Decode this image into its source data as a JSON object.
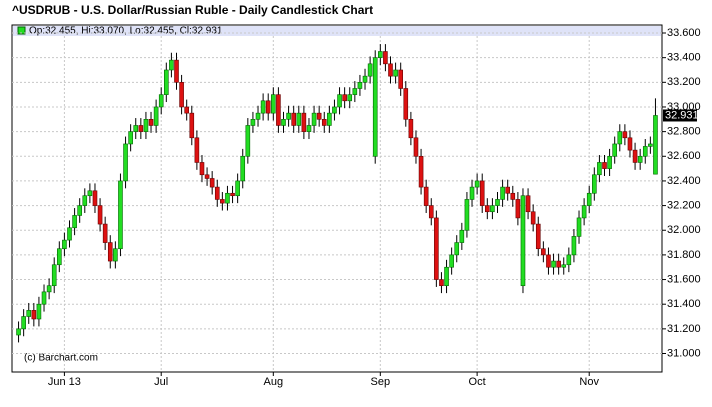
{
  "chart_data": {
    "type": "candlestick",
    "title": "^USDRUB - U.S. Dollar/Russian Ruble - Daily Candlestick Chart",
    "legend": "Op:32.455, Hi:33.070, Lo:32.455, Cl:32.931",
    "credit": "(c) Barchart.com",
    "up_color": "#22dd22",
    "down_color": "#dd1111",
    "ylim": [
      30.85,
      33.665
    ],
    "yticks": [
      {
        "value": 31.0,
        "label": "31.000"
      },
      {
        "value": 31.2,
        "label": "31.200"
      },
      {
        "value": 31.4,
        "label": "31.400"
      },
      {
        "value": 31.6,
        "label": "31.600"
      },
      {
        "value": 31.8,
        "label": "31.800"
      },
      {
        "value": 32.0,
        "label": "32.000"
      },
      {
        "value": 32.2,
        "label": "32.200"
      },
      {
        "value": 32.4,
        "label": "32.400"
      },
      {
        "value": 32.6,
        "label": "32.600"
      },
      {
        "value": 32.8,
        "label": "32.800"
      },
      {
        "value": 33.0,
        "label": "33.000"
      },
      {
        "value": 33.2,
        "label": "33.200"
      },
      {
        "value": 33.4,
        "label": "33.400"
      },
      {
        "value": 33.6,
        "label": "33.600"
      }
    ],
    "last_price": {
      "value": 32.931,
      "label": "32.931"
    },
    "grid": true,
    "categories": [
      null,
      null,
      null,
      null,
      null,
      null,
      null,
      null,
      null,
      "Jun 13",
      null,
      null,
      null,
      null,
      null,
      null,
      null,
      null,
      null,
      null,
      null,
      null,
      null,
      null,
      null,
      null,
      null,
      null,
      "Jul",
      null,
      null,
      null,
      null,
      null,
      null,
      null,
      null,
      null,
      null,
      null,
      null,
      null,
      null,
      null,
      null,
      null,
      null,
      null,
      null,
      null,
      "Aug",
      null,
      null,
      null,
      null,
      null,
      null,
      null,
      null,
      null,
      null,
      null,
      null,
      null,
      null,
      null,
      null,
      null,
      null,
      null,
      null,
      "Sep",
      null,
      null,
      null,
      null,
      null,
      null,
      null,
      null,
      null,
      null,
      null,
      null,
      null,
      null,
      null,
      null,
      null,
      null,
      "Oct",
      null,
      null,
      null,
      null,
      null,
      null,
      null,
      null,
      null,
      null,
      null,
      null,
      null,
      null,
      null,
      null,
      null,
      null,
      null,
      null,
      null,
      "Nov",
      null,
      null,
      null,
      null,
      null,
      null,
      null,
      null,
      null,
      null,
      null,
      null,
      null
    ],
    "open": [
      31.15,
      31.2,
      31.3,
      31.35,
      31.28,
      31.4,
      31.5,
      31.55,
      31.72,
      31.85,
      31.92,
      32.02,
      32.12,
      32.2,
      32.28,
      32.32,
      32.2,
      32.05,
      31.9,
      31.75,
      31.85,
      32.4,
      32.7,
      32.8,
      32.85,
      32.8,
      32.9,
      32.85,
      33.0,
      33.1,
      33.3,
      33.38,
      33.2,
      33.0,
      32.95,
      32.75,
      32.55,
      32.45,
      32.42,
      32.35,
      32.25,
      32.22,
      32.3,
      32.28,
      32.4,
      32.6,
      32.85,
      32.9,
      32.95,
      33.05,
      32.95,
      33.1,
      32.85,
      32.9,
      32.95,
      32.85,
      32.95,
      32.8,
      32.85,
      32.95,
      32.9,
      32.85,
      32.95,
      33.0,
      33.1,
      33.05,
      33.1,
      33.15,
      33.2,
      33.25,
      32.6,
      33.4,
      33.45,
      33.35,
      33.25,
      33.3,
      33.15,
      32.9,
      32.75,
      32.6,
      32.35,
      32.2,
      32.1,
      31.6,
      31.55,
      31.7,
      31.8,
      31.9,
      32.0,
      32.25,
      32.35,
      32.4,
      32.2,
      32.15,
      32.2,
      32.25,
      32.35,
      32.3,
      32.25,
      31.55,
      32.28,
      32.15,
      32.05,
      31.85,
      31.8,
      31.7,
      31.75,
      31.7,
      31.72,
      31.8,
      31.95,
      32.1,
      32.2,
      32.3,
      32.45,
      32.55,
      32.5,
      32.6,
      32.7,
      32.8,
      32.75,
      32.65,
      32.55,
      32.6,
      32.68,
      32.455
    ],
    "high": [
      31.26,
      31.36,
      31.41,
      31.41,
      31.46,
      31.56,
      31.61,
      31.78,
      31.91,
      31.98,
      32.08,
      32.18,
      32.26,
      32.34,
      32.38,
      32.38,
      32.26,
      32.11,
      31.96,
      31.91,
      32.46,
      32.76,
      32.86,
      32.91,
      32.91,
      32.96,
      32.96,
      33.06,
      33.16,
      33.36,
      33.44,
      33.44,
      33.26,
      33.06,
      33.01,
      32.81,
      32.61,
      32.51,
      32.48,
      32.41,
      32.31,
      32.36,
      32.36,
      32.46,
      32.66,
      32.91,
      32.96,
      33.01,
      33.11,
      33.11,
      33.16,
      33.16,
      32.96,
      33.01,
      33.01,
      33.01,
      33.01,
      32.91,
      33.01,
      33.01,
      32.96,
      33.01,
      33.06,
      33.16,
      33.16,
      33.16,
      33.21,
      33.26,
      33.31,
      33.41,
      33.46,
      33.51,
      33.51,
      33.41,
      33.36,
      33.36,
      33.21,
      32.96,
      32.81,
      32.66,
      32.41,
      32.26,
      32.16,
      31.66,
      31.76,
      31.86,
      31.96,
      32.06,
      32.31,
      32.41,
      32.46,
      32.46,
      32.26,
      32.26,
      32.31,
      32.41,
      32.41,
      32.36,
      32.31,
      32.34,
      32.34,
      32.21,
      32.11,
      31.91,
      31.86,
      31.81,
      31.81,
      31.78,
      31.86,
      32.01,
      32.16,
      32.26,
      32.36,
      32.51,
      32.61,
      32.61,
      32.66,
      32.76,
      32.86,
      32.86,
      32.81,
      32.71,
      32.66,
      32.74,
      32.76,
      33.07
    ],
    "low": [
      31.09,
      31.14,
      31.24,
      31.22,
      31.22,
      31.34,
      31.44,
      31.49,
      31.66,
      31.79,
      31.86,
      31.96,
      32.06,
      32.14,
      32.22,
      32.14,
      31.99,
      31.84,
      31.69,
      31.69,
      31.79,
      32.34,
      32.64,
      32.74,
      32.74,
      32.74,
      32.79,
      32.79,
      32.94,
      33.04,
      33.24,
      33.14,
      32.94,
      32.89,
      32.69,
      32.49,
      32.39,
      32.36,
      32.29,
      32.19,
      32.16,
      32.16,
      32.22,
      32.22,
      32.34,
      32.54,
      32.79,
      32.84,
      32.89,
      32.89,
      32.89,
      32.79,
      32.79,
      32.84,
      32.79,
      32.79,
      32.74,
      32.74,
      32.79,
      32.84,
      32.79,
      32.79,
      32.89,
      32.94,
      32.99,
      32.99,
      33.04,
      33.09,
      33.14,
      33.19,
      32.54,
      33.34,
      33.29,
      33.19,
      33.19,
      33.09,
      32.84,
      32.69,
      32.54,
      32.29,
      32.14,
      32.04,
      31.54,
      31.49,
      31.49,
      31.64,
      31.74,
      31.84,
      31.94,
      32.19,
      32.29,
      32.14,
      32.09,
      32.09,
      32.14,
      32.19,
      32.24,
      32.19,
      32.04,
      31.49,
      32.09,
      31.99,
      31.79,
      31.74,
      31.64,
      31.64,
      31.64,
      31.64,
      31.66,
      31.74,
      31.89,
      32.04,
      32.14,
      32.24,
      32.39,
      32.44,
      32.44,
      32.54,
      32.64,
      32.69,
      32.59,
      32.49,
      32.49,
      32.54,
      32.62,
      32.455
    ],
    "close": [
      31.2,
      31.3,
      31.35,
      31.28,
      31.4,
      31.5,
      31.55,
      31.72,
      31.85,
      31.92,
      32.02,
      32.12,
      32.2,
      32.28,
      32.32,
      32.2,
      32.05,
      31.9,
      31.75,
      31.85,
      32.4,
      32.7,
      32.8,
      32.85,
      32.8,
      32.9,
      32.85,
      33.0,
      33.1,
      33.3,
      33.38,
      33.2,
      33.0,
      32.95,
      32.75,
      32.55,
      32.45,
      32.42,
      32.35,
      32.25,
      32.22,
      32.3,
      32.28,
      32.4,
      32.6,
      32.85,
      32.9,
      32.95,
      33.05,
      32.95,
      33.1,
      32.85,
      32.9,
      32.95,
      32.85,
      32.95,
      32.8,
      32.85,
      32.95,
      32.9,
      32.85,
      32.95,
      33.0,
      33.1,
      33.05,
      33.1,
      33.15,
      33.2,
      33.25,
      33.35,
      33.4,
      33.45,
      33.35,
      33.25,
      33.3,
      33.15,
      32.9,
      32.75,
      32.6,
      32.35,
      32.2,
      32.1,
      31.6,
      31.55,
      31.7,
      31.8,
      31.9,
      32.0,
      32.25,
      32.35,
      32.4,
      32.2,
      32.15,
      32.2,
      32.25,
      32.35,
      32.3,
      32.25,
      32.1,
      32.28,
      32.15,
      32.05,
      31.85,
      31.8,
      31.7,
      31.75,
      31.7,
      31.72,
      31.8,
      31.95,
      32.1,
      32.2,
      32.3,
      32.45,
      32.55,
      32.5,
      32.6,
      32.7,
      32.8,
      32.75,
      32.65,
      32.55,
      32.6,
      32.68,
      32.7,
      32.931
    ]
  }
}
